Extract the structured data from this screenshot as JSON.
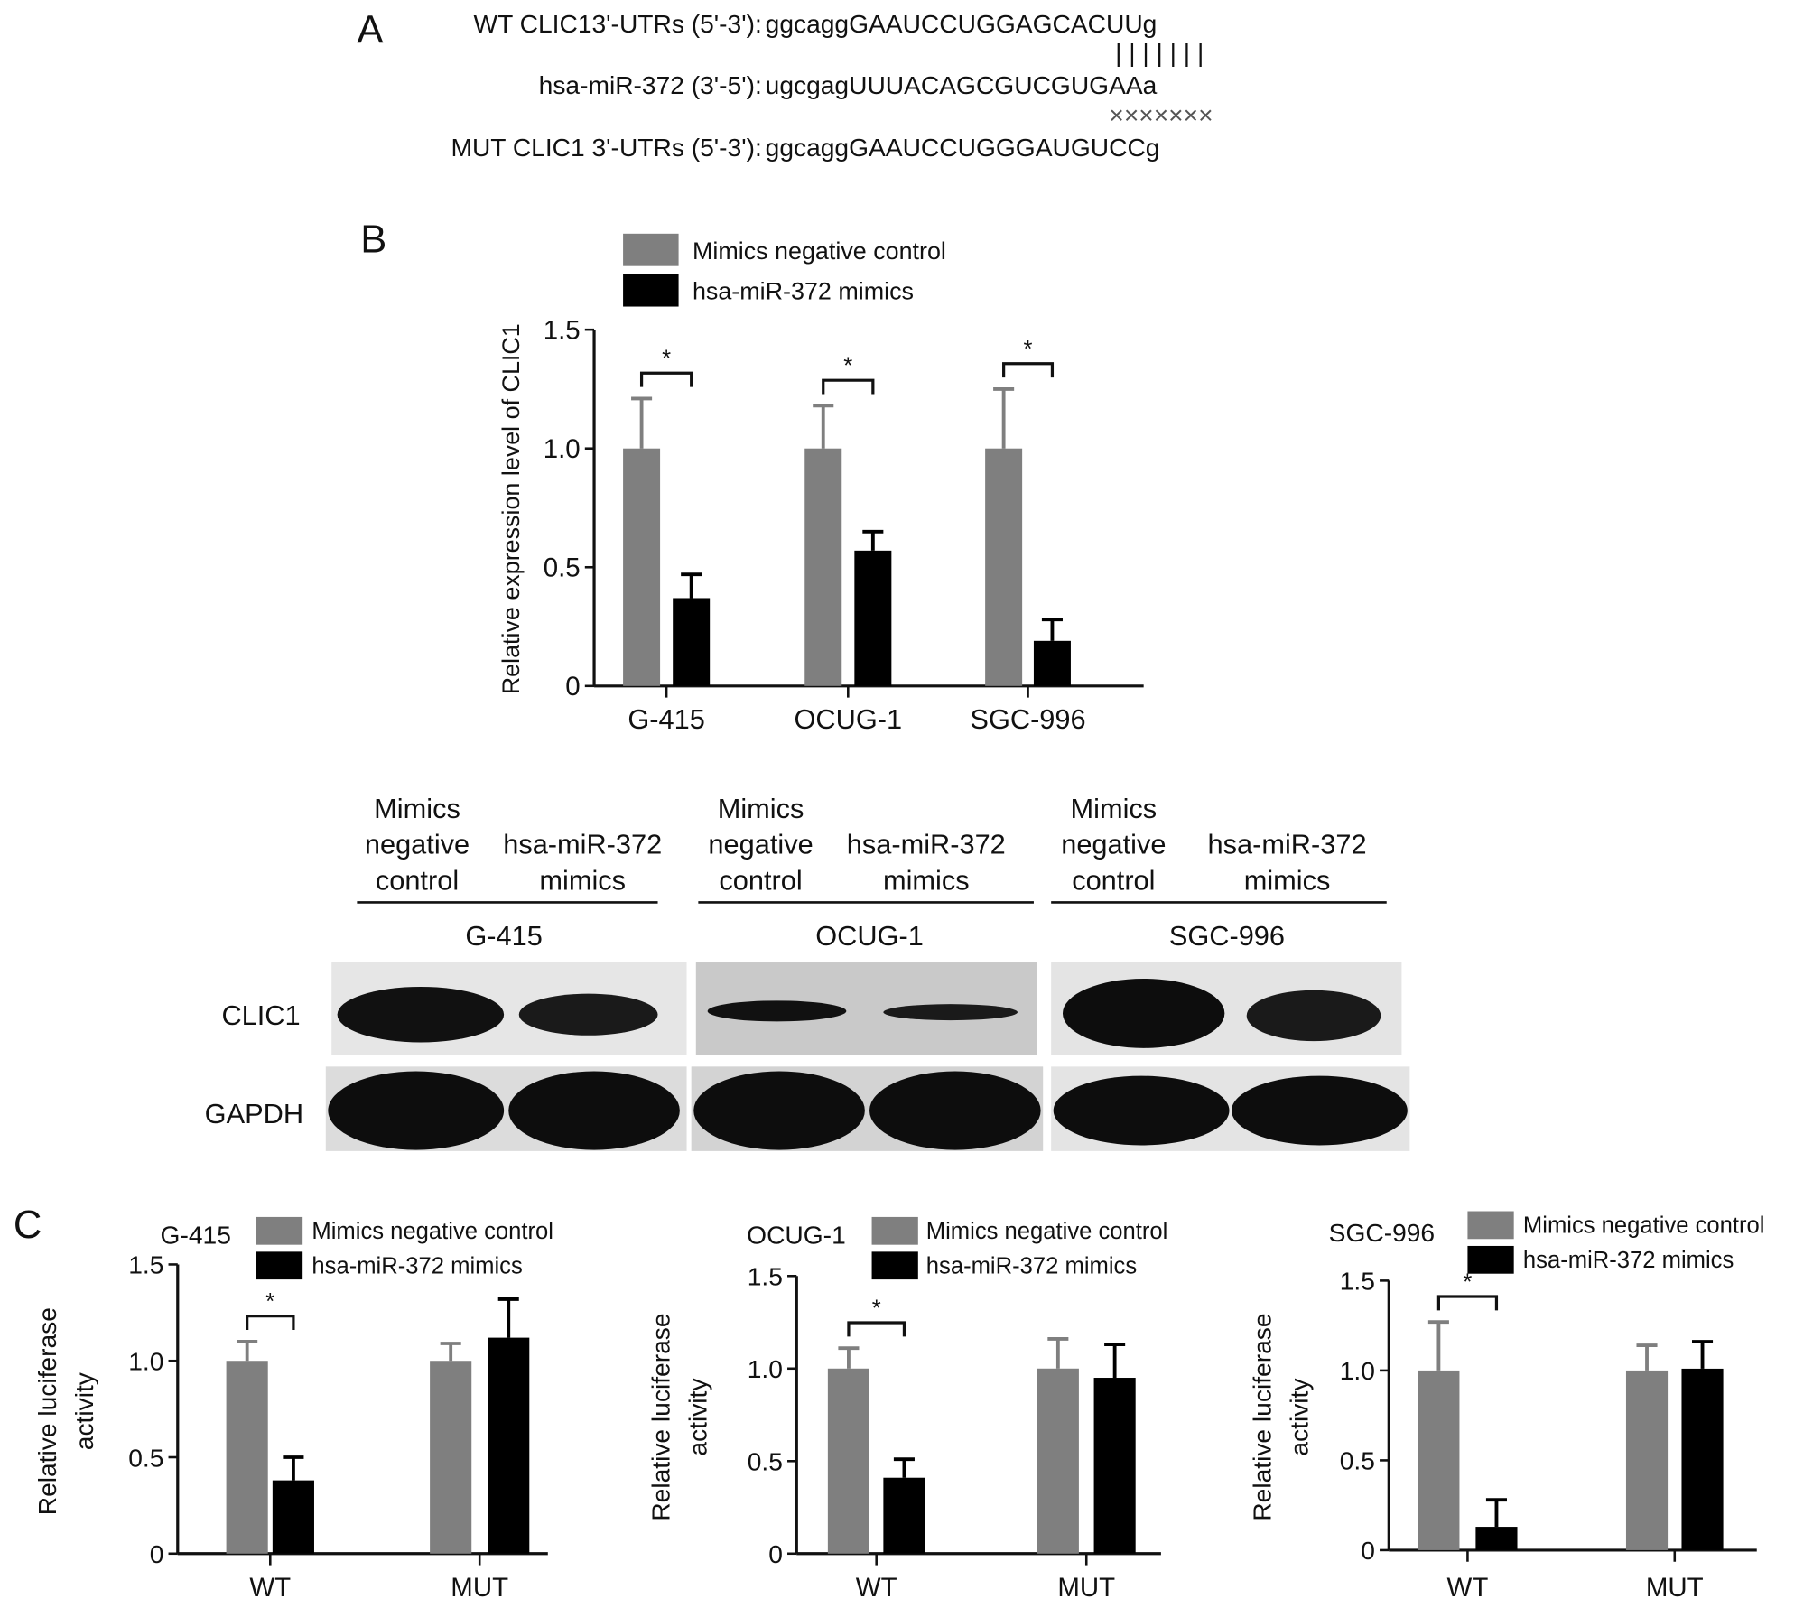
{
  "panel_a": {
    "label": "A",
    "rows": [
      {
        "name": "WT CLIC13'-UTRs (5'-3'):",
        "seq": "ggcaggGAAUCCUGGAGCACUUg"
      },
      {
        "name": "hsa-miR-372 (3'-5'):",
        "seq": "ugcgagUUUACAGCGUCGUGAAa"
      },
      {
        "name": "MUT CLIC1 3'-UTRs (5'-3'):",
        "seq": "ggcaggGAAUCCUGGGAUGUCCg"
      }
    ],
    "pairing_marks": "| | | | | | |",
    "mismatch_marks": "×××××××"
  },
  "panel_b": {
    "label": "B",
    "western": {
      "groups": [
        {
          "cell_line": "G-415",
          "lane1": [
            "Mimics",
            "negative",
            "control"
          ],
          "lane2": [
            "hsa-miR-372",
            "mimics"
          ]
        },
        {
          "cell_line": "OCUG-1",
          "lane1": [
            "Mimics",
            "negative",
            "control"
          ],
          "lane2": [
            "hsa-miR-372",
            "mimics"
          ]
        },
        {
          "cell_line": "SGC-996",
          "lane1": [
            "Mimics",
            "negative",
            "control"
          ],
          "lane2": [
            "hsa-miR-372",
            "mimics"
          ]
        }
      ],
      "rows": [
        "CLIC1",
        "GAPDH"
      ]
    }
  },
  "panel_c": {
    "label": "C"
  },
  "colors": {
    "control": "#7f7f7f",
    "mimics": "#000000"
  },
  "chart_data": [
    {
      "type": "bar",
      "panel": "B",
      "title": "",
      "ylabel": "Relative expression level of CLIC1",
      "ylim": [
        0,
        1.5
      ],
      "yticks": [
        "0",
        "0.5",
        "1.0",
        "1.5"
      ],
      "categories": [
        "G-415",
        "OCUG-1",
        "SGC-996"
      ],
      "legend": "top",
      "significance": [
        "*",
        "*",
        "*"
      ],
      "series": [
        {
          "name": "Mimics negative control",
          "values": [
            1.0,
            1.0,
            1.0
          ],
          "error_upper": [
            1.21,
            1.18,
            1.25
          ]
        },
        {
          "name": "hsa-miR-372 mimics",
          "values": [
            0.37,
            0.57,
            0.19
          ],
          "error_upper": [
            0.47,
            0.65,
            0.28
          ]
        }
      ]
    },
    {
      "type": "bar",
      "panel": "C",
      "title": "G-415",
      "ylabel": [
        "Relative luciferase",
        "activity"
      ],
      "ylim": [
        0,
        1.5
      ],
      "yticks": [
        "0",
        "0.5",
        "1.0",
        "1.5"
      ],
      "categories": [
        "WT",
        "MUT"
      ],
      "legend": "top",
      "significance": [
        "*",
        ""
      ],
      "series": [
        {
          "name": "Mimics negative control",
          "values": [
            1.0,
            1.0
          ],
          "error_upper": [
            1.1,
            1.09
          ]
        },
        {
          "name": "hsa-miR-372 mimics",
          "values": [
            0.38,
            1.12
          ],
          "error_upper": [
            0.5,
            1.32
          ]
        }
      ]
    },
    {
      "type": "bar",
      "panel": "C",
      "title": "OCUG-1",
      "ylabel": [
        "Relative luciferase",
        "activity"
      ],
      "ylim": [
        0,
        1.5
      ],
      "yticks": [
        "0",
        "0.5",
        "1.0",
        "1.5"
      ],
      "categories": [
        "WT",
        "MUT"
      ],
      "legend": "top",
      "significance": [
        "*",
        ""
      ],
      "series": [
        {
          "name": "Mimics negative control",
          "values": [
            1.0,
            1.0
          ],
          "error_upper": [
            1.11,
            1.16
          ]
        },
        {
          "name": "hsa-miR-372 mimics",
          "values": [
            0.41,
            0.95
          ],
          "error_upper": [
            0.51,
            1.13
          ]
        }
      ]
    },
    {
      "type": "bar",
      "panel": "C",
      "title": "SGC-996",
      "ylabel": [
        "Relative luciferase",
        "activity"
      ],
      "ylim": [
        0,
        1.5
      ],
      "yticks": [
        "0",
        "0.5",
        "1.0",
        "1.5"
      ],
      "categories": [
        "WT",
        "MUT"
      ],
      "legend": "top",
      "significance": [
        "*",
        ""
      ],
      "series": [
        {
          "name": "Mimics negative control",
          "values": [
            1.0,
            1.0
          ],
          "error_upper": [
            1.27,
            1.14
          ]
        },
        {
          "name": "hsa-miR-372 mimics",
          "values": [
            0.13,
            1.01
          ],
          "error_upper": [
            0.28,
            1.16
          ]
        }
      ]
    }
  ]
}
